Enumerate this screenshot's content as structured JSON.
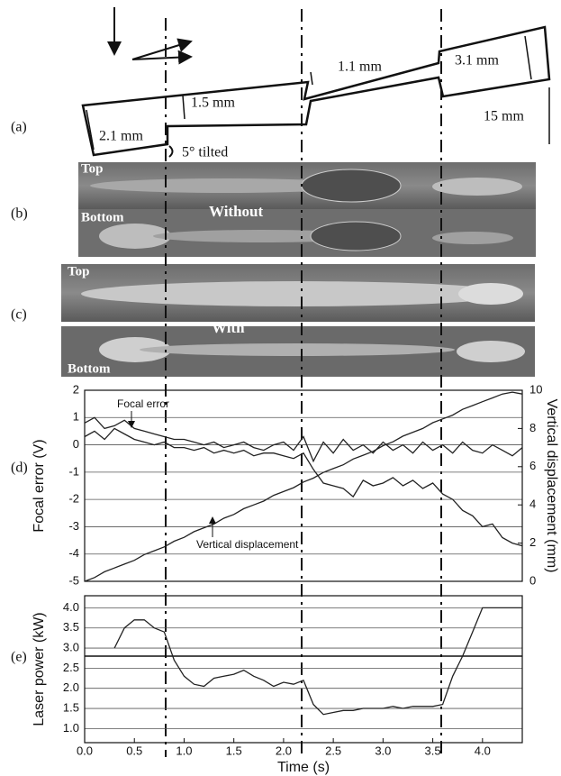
{
  "panel_labels": [
    "(a)",
    "(b)",
    "(c)",
    "(d)",
    "(e)"
  ],
  "diagram": {
    "dims": [
      "2.1 mm",
      "1.5 mm",
      "1.1 mm",
      "3.1 mm",
      "15 mm"
    ],
    "tilt": "5° tilted"
  },
  "photos": {
    "b": {
      "top": "Top",
      "bottom": "Bottom",
      "label": "Without"
    },
    "c": {
      "top": "Top",
      "bottom": "Bottom",
      "label": "With"
    }
  },
  "chart_data": [
    {
      "type": "line",
      "ylabel": "Focal error (V)",
      "y2label": "Vertical displacement (mm)",
      "x": [
        0,
        0.1,
        0.2,
        0.3,
        0.4,
        0.5,
        0.6,
        0.7,
        0.8,
        0.9,
        1.0,
        1.1,
        1.2,
        1.3,
        1.4,
        1.5,
        1.6,
        1.7,
        1.8,
        1.9,
        2.0,
        2.1,
        2.2,
        2.3,
        2.4,
        2.5,
        2.6,
        2.7,
        2.8,
        2.9,
        3.0,
        3.1,
        3.2,
        3.3,
        3.4,
        3.5,
        3.6,
        3.7,
        3.8,
        3.9,
        4.0,
        4.1,
        4.2,
        4.3,
        4.4
      ],
      "series": [
        {
          "name": "Focal error",
          "color": "#222222",
          "values": [
            0.8,
            1.0,
            0.6,
            0.7,
            0.9,
            0.6,
            0.5,
            0.4,
            0.3,
            0.2,
            0.2,
            0.1,
            0.0,
            0.1,
            -0.1,
            0.0,
            0.1,
            -0.1,
            -0.2,
            0.0,
            0.1,
            -0.2,
            0.3,
            -0.6,
            0.1,
            -0.3,
            0.2,
            -0.2,
            0.0,
            -0.3,
            0.1,
            -0.2,
            0.0,
            -0.3,
            0.1,
            -0.2,
            0.0,
            -0.3,
            0.1,
            -0.2,
            -0.3,
            0.0,
            -0.2,
            -0.4,
            -0.1
          ]
        },
        {
          "color": "#222222",
          "values": [
            0.3,
            0.5,
            0.2,
            0.6,
            0.4,
            0.2,
            0.1,
            0.0,
            0.1,
            -0.1,
            -0.1,
            -0.2,
            -0.1,
            -0.3,
            -0.2,
            -0.3,
            -0.2,
            -0.4,
            -0.3,
            -0.3,
            -0.4,
            -0.5,
            -0.3,
            -0.9,
            -1.4,
            -1.5,
            -1.6,
            -1.9,
            -1.3,
            -1.5,
            -1.4,
            -1.2,
            -1.5,
            -1.3,
            -1.6,
            -1.4,
            -1.8,
            -2.0,
            -2.4,
            -2.6,
            -3.0,
            -2.9,
            -3.4,
            -3.6,
            -3.7
          ]
        },
        {
          "name": "Vertical displacement",
          "color": "#222222",
          "axis": "y2",
          "values": [
            0.0,
            0.2,
            0.5,
            0.7,
            0.9,
            1.1,
            1.4,
            1.6,
            1.8,
            2.1,
            2.3,
            2.6,
            2.8,
            3.0,
            3.3,
            3.5,
            3.8,
            4.0,
            4.2,
            4.5,
            4.7,
            4.9,
            5.2,
            5.4,
            5.7,
            5.9,
            6.1,
            6.4,
            6.6,
            6.8,
            7.1,
            7.3,
            7.6,
            7.8,
            8.0,
            8.3,
            8.5,
            8.7,
            9.0,
            9.2,
            9.4,
            9.6,
            9.8,
            9.9,
            9.8
          ]
        }
      ],
      "xlim": [
        0,
        4.4
      ],
      "ylim": [
        -5,
        2
      ],
      "yticks": [
        -5,
        -4,
        -3,
        -2,
        -1,
        0,
        1,
        2
      ],
      "y2lim": [
        0,
        10
      ],
      "y2ticks": [
        0,
        2,
        4,
        6,
        8,
        10
      ],
      "grid": true
    },
    {
      "type": "line",
      "xlabel": "Time (s)",
      "ylabel": "Laser power (kW)",
      "x": [
        0,
        0.1,
        0.2,
        0.3,
        0.4,
        0.5,
        0.6,
        0.7,
        0.8,
        0.9,
        1.0,
        1.1,
        1.2,
        1.3,
        1.4,
        1.5,
        1.6,
        1.7,
        1.8,
        1.9,
        2.0,
        2.1,
        2.2,
        2.3,
        2.4,
        2.5,
        2.6,
        2.7,
        2.8,
        2.9,
        3.0,
        3.1,
        3.2,
        3.3,
        3.4,
        3.5,
        3.6,
        3.7,
        3.8,
        3.9,
        4.0,
        4.1,
        4.2,
        4.3,
        4.4
      ],
      "series": [
        {
          "color": "#222222",
          "values": [
            null,
            null,
            null,
            3.0,
            3.5,
            3.7,
            3.7,
            3.5,
            3.4,
            2.7,
            2.3,
            2.1,
            2.05,
            2.25,
            2.3,
            2.35,
            2.45,
            2.3,
            2.2,
            2.05,
            2.15,
            2.1,
            2.2,
            1.6,
            1.35,
            1.4,
            1.45,
            1.45,
            1.5,
            1.5,
            1.5,
            1.55,
            1.5,
            1.55,
            1.55,
            1.55,
            1.6,
            2.3,
            2.8,
            3.4,
            4.0,
            4.0,
            4.0,
            4.0,
            4.0
          ]
        }
      ],
      "ref_line": 2.8,
      "xlim": [
        0,
        4.4
      ],
      "xticks": [
        {
          "value": 0,
          "label": "0.0"
        },
        0.5,
        {
          "value": 1,
          "label": "1.0"
        },
        1.5,
        {
          "value": 2,
          "label": "2.0"
        },
        2.5,
        {
          "value": 3,
          "label": "3.0"
        },
        3.5,
        {
          "value": 4,
          "label": "4.0"
        }
      ],
      "ylim": [
        0.65,
        4.3
      ],
      "yticks": [
        {
          "value": 1,
          "label": "1.0"
        },
        1.5,
        {
          "value": 2,
          "label": "2.0"
        },
        2.5,
        {
          "value": 3,
          "label": "3.0"
        },
        3.5,
        {
          "value": 4,
          "label": "4.0"
        }
      ],
      "grid": true
    }
  ]
}
